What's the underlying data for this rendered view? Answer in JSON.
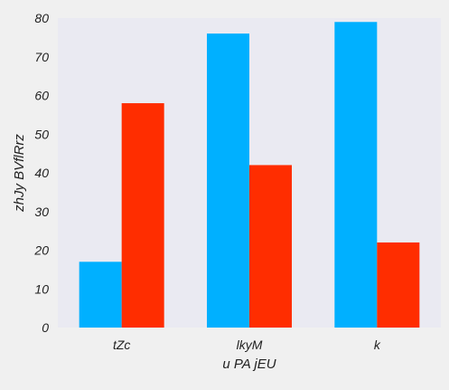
{
  "chart_data": {
    "type": "bar",
    "title": "",
    "xlabel": "u PA jEU",
    "ylabel": "zhJy BVflRrz",
    "categories": [
      "tZc",
      "lkyM",
      "k"
    ],
    "series": [
      {
        "values": [
          17,
          76,
          79
        ],
        "color": "#00b0ff"
      },
      {
        "values": [
          58,
          42,
          22
        ],
        "color": "#ff2d00"
      }
    ],
    "ylim": [
      0,
      80
    ],
    "yticks": [
      0,
      10,
      20,
      30,
      40,
      50,
      60,
      70,
      80
    ],
    "grid": false,
    "legend": "none",
    "plot_background": "#eaeaf2",
    "figure_background": "#f0f0f0"
  }
}
